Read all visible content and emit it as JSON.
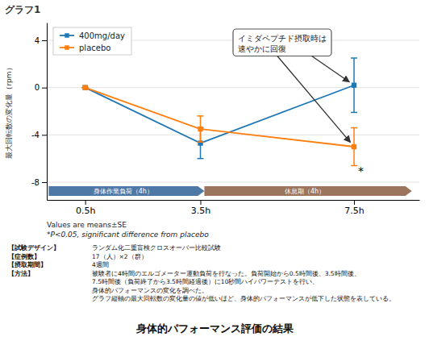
{
  "chart_data": {
    "type": "line",
    "title": "グラフ1",
    "ylabel": "最大回転数の変化量（rpm）",
    "x": [
      0.5,
      3.5,
      7.5
    ],
    "xlim": [
      -0.5,
      9.2
    ],
    "xticks": [
      {
        "value": 0.5,
        "label": "0.5h"
      },
      {
        "value": 3.5,
        "label": "3.5h"
      },
      {
        "value": 7.5,
        "label": "7.5h"
      }
    ],
    "ylim": [
      -9.5,
      5.5
    ],
    "yticks": [
      -8,
      -4,
      0,
      4
    ],
    "grid": true,
    "legend": "upper left",
    "series": [
      {
        "name": "400mg/day",
        "marker": "square",
        "line_style": "solid",
        "values": [
          0.0,
          -4.7,
          0.2
        ],
        "yerr": [
          0.0,
          1.3,
          2.3
        ]
      },
      {
        "name": "placebo",
        "marker": "square",
        "line_style": "solid",
        "values": [
          0.0,
          -3.5,
          -5.0
        ],
        "yerr": [
          0.0,
          1.1,
          1.6
        ]
      }
    ],
    "annotations": [
      "イミダペプチド摂取時は\n速やかに回復",
      "*"
    ],
    "phases": [
      "身体作業負荷（4h）",
      "休息期（4h）"
    ],
    "notes": [
      "Values are means±SE",
      "*P<0.05,  significant difference from placebo"
    ],
    "info": [
      {
        "label": "【試験デザイン】",
        "content": "ランダム化二重盲検クロスオーバー比較試験"
      },
      {
        "label": "【症例数】",
        "content": "17（人）×2（群）"
      },
      {
        "label": "【摂取期間】",
        "content": "4週間"
      },
      {
        "label": "【方法】",
        "content": "被験者に4時間のエルゴメーター運動負荷を行なった。負荷開始から0.5時間後、3.5時間後、\n7.5時間後（負荷終了から3.5時間経過後）に10秒間ハイパワーテストを行い、\n身体的パフォーマンスの変化を調べた。\nグラフ縦軸の最大回転数の変化量の値が低いほど、身体的パフォーマンスが低下した状態を表している。"
      }
    ],
    "footer": "身体的パフォーマンス評価の結果"
  }
}
